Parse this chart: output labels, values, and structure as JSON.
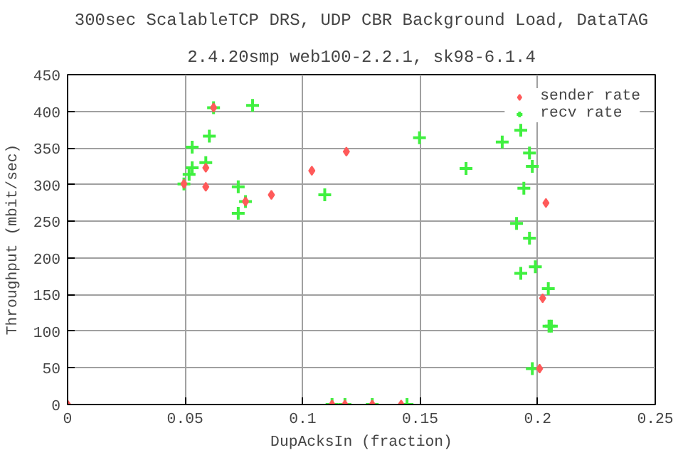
{
  "chart_data": {
    "type": "scatter",
    "title": "300sec ScalableTCP DRS, UDP CBR Background Load, DataTAG",
    "subtitle": "2.4.20smp web100-2.2.1, sk98-6.1.4",
    "xlabel": "DupAcksIn (fraction)",
    "ylabel": "Throughput (mbit/sec)",
    "xlim": [
      0,
      0.25
    ],
    "ylim": [
      0,
      450
    ],
    "xticks": [
      0,
      0.05,
      0.1,
      0.15,
      0.2,
      0.25
    ],
    "yticks": [
      0,
      50,
      100,
      150,
      200,
      250,
      300,
      350,
      400,
      450
    ],
    "grid": true,
    "legend": "top right",
    "series": [
      {
        "name": "sender rate",
        "color": "#ff5a5a",
        "marker": "diamond",
        "x": [
          0,
          0.0495,
          0.0588,
          0.0588,
          0.0621,
          0.0757,
          0.0867,
          0.1039,
          0.1186,
          0.1125,
          0.118,
          0.1296,
          0.1419,
          0.2035,
          0.2021,
          0.2008
        ],
        "values": [
          0,
          301,
          297,
          323,
          405,
          277,
          286,
          319,
          345,
          0,
          0,
          0,
          0,
          275,
          145,
          49
        ]
      },
      {
        "name": "recv rate",
        "color": "#40f040",
        "marker": "cross",
        "x": [
          0.0495,
          0.0517,
          0.053,
          0.053,
          0.0603,
          0.0588,
          0.0621,
          0.0787,
          0.0726,
          0.0757,
          0.0726,
          0.1094,
          0.1125,
          0.118,
          0.1296,
          0.1444,
          0.1497,
          0.1695,
          0.1849,
          0.1928,
          0.1965,
          0.1977,
          0.1941,
          0.191,
          0.1965,
          0.199,
          0.1928,
          0.2045,
          0.2048,
          0.2058,
          0.1977
        ],
        "values": [
          301,
          314,
          323,
          351,
          366,
          330,
          405,
          408,
          297,
          277,
          261,
          286,
          0,
          0,
          0,
          0,
          364,
          322,
          358,
          374,
          343,
          325,
          295,
          247,
          227,
          188,
          179,
          158,
          107,
          107,
          49
        ]
      }
    ]
  }
}
